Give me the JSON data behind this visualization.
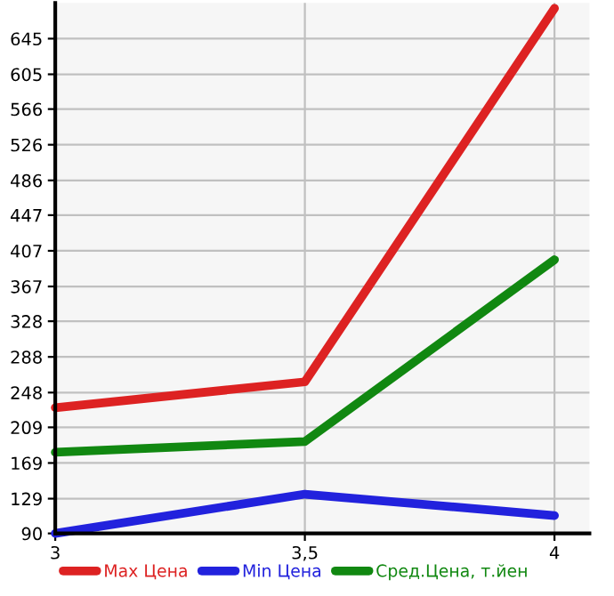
{
  "chart_data": {
    "type": "line",
    "x": [
      3,
      3.5,
      4
    ],
    "series": [
      {
        "name": "Max Цена",
        "color": "#dd2222",
        "values": [
          231,
          260,
          679
        ]
      },
      {
        "name": "Min Цена",
        "color": "#2222dd",
        "values": [
          90,
          134,
          110
        ]
      },
      {
        "name": "Сред.Цена, т.йен",
        "color": "#118811",
        "values": [
          181,
          193,
          397
        ]
      }
    ],
    "xlim": [
      3,
      4.07
    ],
    "ylim": [
      90,
      685
    ],
    "xticks": [
      3,
      {
        "value": 3.5,
        "label": "3,5"
      },
      4
    ],
    "yticks": [
      90,
      129,
      169,
      209,
      248,
      288,
      328,
      367,
      407,
      447,
      486,
      526,
      566,
      605,
      645
    ],
    "grid": true,
    "legend": "bottom",
    "marker": "none",
    "line_style": "solid"
  }
}
